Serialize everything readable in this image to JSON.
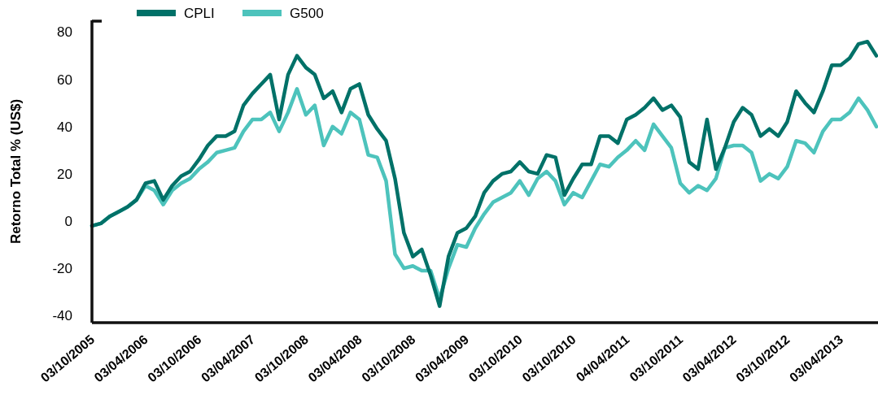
{
  "chart_data": {
    "type": "line",
    "ylabel": "Retorno Total % (US$)",
    "legend": "top left",
    "grid": false,
    "line_style": "solid",
    "marker": "none",
    "categories": [
      "03/10/2005",
      null,
      null,
      null,
      null,
      null,
      "03/04/2006",
      null,
      null,
      null,
      null,
      null,
      "03/10/2006",
      null,
      null,
      null,
      null,
      null,
      "03/04/2007",
      null,
      null,
      null,
      null,
      null,
      "03/10/2008",
      null,
      null,
      null,
      null,
      null,
      "03/04/2008",
      null,
      null,
      null,
      null,
      null,
      "03/10/2008",
      null,
      null,
      null,
      null,
      null,
      "03/04/2009",
      null,
      null,
      null,
      null,
      null,
      "03/10/2010",
      null,
      null,
      null,
      null,
      null,
      "03/10/2010",
      null,
      null,
      null,
      null,
      null,
      "04/04/2011",
      null,
      null,
      null,
      null,
      null,
      "03/10/2011",
      null,
      null,
      null,
      null,
      null,
      "03/04/2012",
      null,
      null,
      null,
      null,
      null,
      "03/10/2012",
      null,
      null,
      null,
      null,
      null,
      "03/04/2013",
      null,
      null,
      null,
      null
    ],
    "ylim": [
      -43,
      85
    ],
    "yticks": [
      -40,
      -20,
      0,
      20,
      40,
      60,
      80
    ],
    "series": [
      {
        "name": "CPLI",
        "color": "#007168",
        "values": [
          -2,
          -1,
          2,
          4,
          6,
          9,
          16,
          17,
          9,
          15,
          19,
          21,
          26,
          32,
          36,
          36,
          38,
          49,
          54,
          58,
          62,
          43,
          62,
          70,
          65,
          62,
          52,
          55,
          46,
          56,
          58,
          45,
          39,
          34,
          18,
          -5,
          -15,
          -12,
          -23,
          -36,
          -15,
          -5,
          -3,
          2,
          12,
          17,
          20,
          21,
          25,
          21,
          20,
          28,
          27,
          11,
          18,
          24,
          24,
          36,
          36,
          33,
          43,
          45,
          48,
          52,
          47,
          49,
          44,
          25,
          22,
          43,
          22,
          31,
          42,
          48,
          45,
          36,
          39,
          36,
          42,
          55,
          50,
          46,
          55,
          66,
          66,
          69,
          75,
          76,
          70
        ]
      },
      {
        "name": "G500",
        "color": "#4dc3bc",
        "values": [
          -2,
          -1,
          2,
          4,
          6,
          9,
          15,
          13,
          7,
          13,
          16,
          18,
          22,
          25,
          29,
          30,
          31,
          38,
          43,
          43,
          46,
          38,
          46,
          56,
          45,
          49,
          32,
          40,
          37,
          46,
          43,
          28,
          27,
          17,
          -14,
          -20,
          -19,
          -21,
          -21,
          -33,
          -20,
          -10,
          -11,
          -3,
          3,
          8,
          10,
          12,
          17,
          11,
          18,
          21,
          17,
          7,
          12,
          10,
          17,
          24,
          23,
          27,
          30,
          34,
          30,
          41,
          36,
          31,
          16,
          12,
          15,
          13,
          18,
          31,
          32,
          32,
          29,
          17,
          20,
          18,
          23,
          34,
          33,
          29,
          38,
          43,
          43,
          46,
          52,
          47,
          40
        ]
      }
    ]
  }
}
